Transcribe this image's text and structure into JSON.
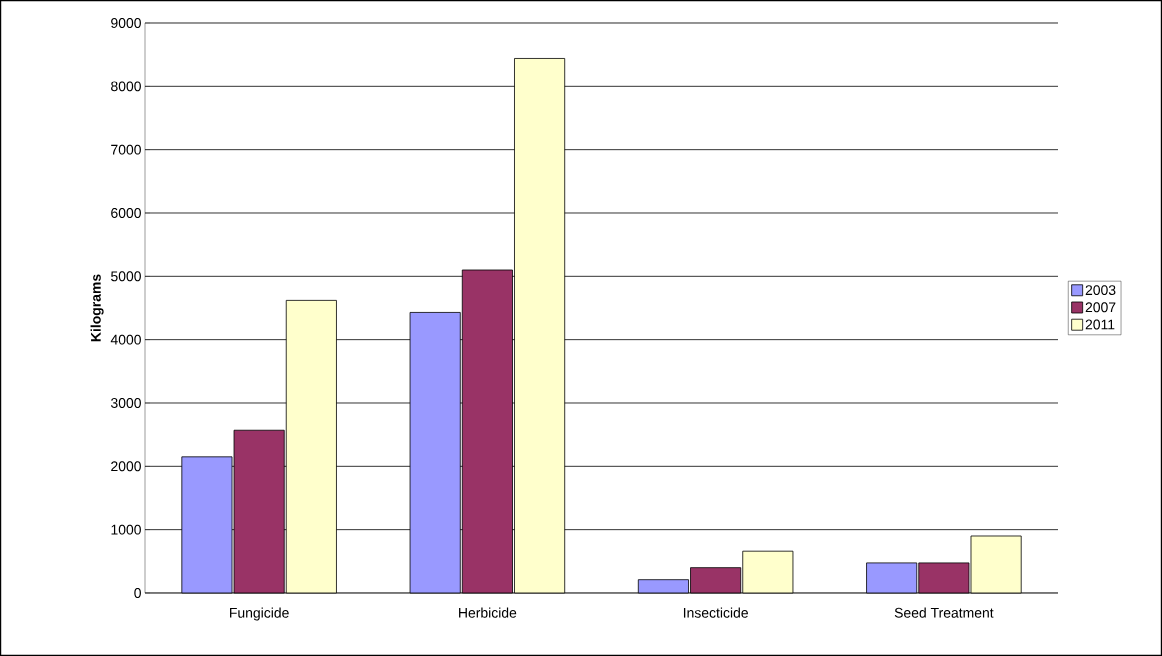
{
  "chart_data": {
    "type": "bar",
    "ylabel": "Kilograms",
    "categories": [
      "Fungicide",
      "Herbicide",
      "Insecticide",
      "Seed Treatment"
    ],
    "series": [
      {
        "name": "2003",
        "color": "#9999ff",
        "values": [
          2150,
          4430,
          210,
          475
        ]
      },
      {
        "name": "2007",
        "color": "#993366",
        "values": [
          2570,
          5100,
          400,
          475
        ]
      },
      {
        "name": "2011",
        "color": "#ffffcc",
        "values": [
          4620,
          8440,
          660,
          900
        ]
      }
    ],
    "ylim": [
      0,
      9000
    ],
    "yticks": [
      0,
      1000,
      2000,
      3000,
      4000,
      5000,
      6000,
      7000,
      8000,
      9000
    ],
    "grid": "y",
    "legend": "right"
  }
}
